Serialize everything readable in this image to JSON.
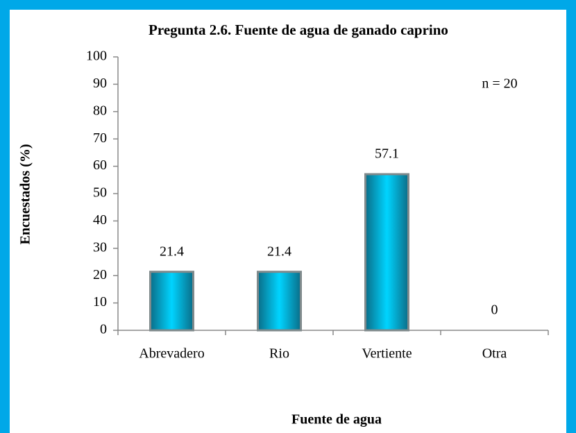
{
  "chart_data": {
    "type": "bar",
    "title": "Pregunta 2.6. Fuente de agua de ganado caprino",
    "x_label": "Fuente de agua",
    "y_label": "Encuestados (%)",
    "annotation": "n = 20",
    "categories": [
      "Abrevadero",
      "Rio",
      "Vertiente",
      "Otra"
    ],
    "values": [
      21.4,
      21.4,
      57.1,
      0
    ],
    "color": "#00c8f0",
    "ylim": [
      0,
      100
    ],
    "yticks": [
      0,
      10,
      20,
      30,
      40,
      50,
      60,
      70,
      80,
      90,
      100
    ],
    "grid": false
  }
}
